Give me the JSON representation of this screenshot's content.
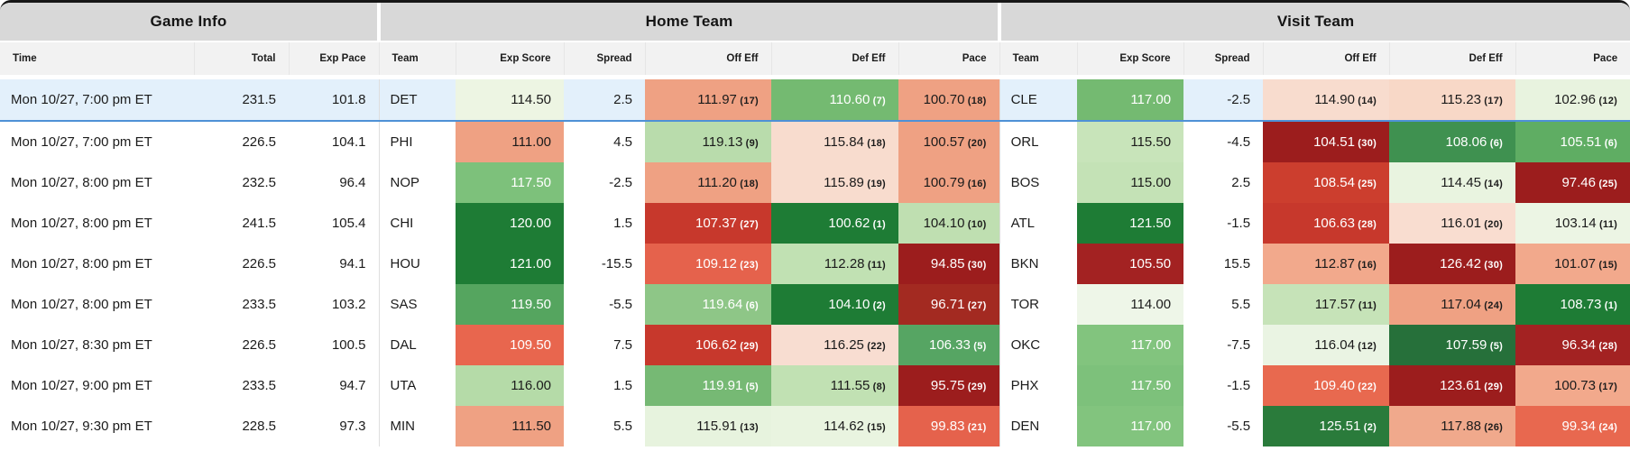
{
  "groups": [
    {
      "label": "Game Info"
    },
    {
      "label": "Home Team"
    },
    {
      "label": "Visit Team"
    }
  ],
  "columns": {
    "game_info": [
      "Time",
      "Total",
      "Exp Pace"
    ],
    "team": [
      "Team",
      "Exp Score",
      "Spread",
      "Off Eff",
      "Def Eff",
      "Pace"
    ]
  },
  "selection": {
    "row_bg": "#e3f0fb",
    "border": "#4e91d6"
  },
  "rows": [
    {
      "time": "Mon 10/27, 7:00 pm ET",
      "total": "231.5",
      "exp_pace": "101.8",
      "selected": true,
      "home": {
        "team": "DET",
        "exp_score": {
          "v": "114.50",
          "bg": "#edf5e3",
          "fg": "#1b1b1b"
        },
        "spread": "2.5",
        "off_eff": {
          "v": "111.97",
          "rank": "17",
          "bg": "#efa183",
          "fg": "#1b1b1b"
        },
        "def_eff": {
          "v": "110.60",
          "rank": "7",
          "bg": "#74ba71",
          "fg": "#ffffff"
        },
        "pace": {
          "v": "100.70",
          "rank": "18",
          "bg": "#efa183",
          "fg": "#1b1b1b"
        }
      },
      "visit": {
        "team": "CLE",
        "exp_score": {
          "v": "117.00",
          "bg": "#74ba71",
          "fg": "#ffffff"
        },
        "spread": "-2.5",
        "off_eff": {
          "v": "114.90",
          "rank": "14",
          "bg": "#f8dcce",
          "fg": "#1b1b1b"
        },
        "def_eff": {
          "v": "115.23",
          "rank": "17",
          "bg": "#f8d8c7",
          "fg": "#1b1b1b"
        },
        "pace": {
          "v": "102.96",
          "rank": "12",
          "bg": "#e8f3df",
          "fg": "#1b1b1b"
        }
      }
    },
    {
      "time": "Mon 10/27, 7:00 pm ET",
      "total": "226.5",
      "exp_pace": "104.1",
      "selected": false,
      "home": {
        "team": "PHI",
        "exp_score": {
          "v": "111.00",
          "bg": "#efa183",
          "fg": "#1b1b1b"
        },
        "spread": "4.5",
        "off_eff": {
          "v": "119.13",
          "rank": "9",
          "bg": "#b9dcac",
          "fg": "#1b1b1b"
        },
        "def_eff": {
          "v": "115.84",
          "rank": "18",
          "bg": "#f8dcce",
          "fg": "#1b1b1b"
        },
        "pace": {
          "v": "100.57",
          "rank": "20",
          "bg": "#efa183",
          "fg": "#1b1b1b"
        }
      },
      "visit": {
        "team": "ORL",
        "exp_score": {
          "v": "115.50",
          "bg": "#c8e4ba",
          "fg": "#1b1b1b"
        },
        "spread": "-4.5",
        "off_eff": {
          "v": "104.51",
          "rank": "30",
          "bg": "#9c1d1d",
          "fg": "#ffffff"
        },
        "def_eff": {
          "v": "108.06",
          "rank": "6",
          "bg": "#3f9150",
          "fg": "#ffffff"
        },
        "pace": {
          "v": "105.51",
          "rank": "6",
          "bg": "#5fad63",
          "fg": "#ffffff"
        }
      }
    },
    {
      "time": "Mon 10/27, 8:00 pm ET",
      "total": "232.5",
      "exp_pace": "96.4",
      "selected": false,
      "home": {
        "team": "NOP",
        "exp_score": {
          "v": "117.50",
          "bg": "#7dc17b",
          "fg": "#ffffff"
        },
        "spread": "-2.5",
        "off_eff": {
          "v": "111.20",
          "rank": "18",
          "bg": "#efa183",
          "fg": "#1b1b1b"
        },
        "def_eff": {
          "v": "115.89",
          "rank": "19",
          "bg": "#f8dcce",
          "fg": "#1b1b1b"
        },
        "pace": {
          "v": "100.79",
          "rank": "16",
          "bg": "#efa183",
          "fg": "#1b1b1b"
        }
      },
      "visit": {
        "team": "BOS",
        "exp_score": {
          "v": "115.00",
          "bg": "#c4e2b6",
          "fg": "#1b1b1b"
        },
        "spread": "2.5",
        "off_eff": {
          "v": "108.54",
          "rank": "25",
          "bg": "#cc3e2e",
          "fg": "#ffffff"
        },
        "def_eff": {
          "v": "114.45",
          "rank": "14",
          "bg": "#e9f4e0",
          "fg": "#1b1b1b"
        },
        "pace": {
          "v": "97.46",
          "rank": "25",
          "bg": "#9c1d1d",
          "fg": "#ffffff"
        }
      }
    },
    {
      "time": "Mon 10/27, 8:00 pm ET",
      "total": "241.5",
      "exp_pace": "105.4",
      "selected": false,
      "home": {
        "team": "CHI",
        "exp_score": {
          "v": "120.00",
          "bg": "#1e7c35",
          "fg": "#ffffff"
        },
        "spread": "1.5",
        "off_eff": {
          "v": "107.37",
          "rank": "27",
          "bg": "#c7382c",
          "fg": "#ffffff"
        },
        "def_eff": {
          "v": "100.62",
          "rank": "1",
          "bg": "#1e7c35",
          "fg": "#ffffff"
        },
        "pace": {
          "v": "104.10",
          "rank": "10",
          "bg": "#bfdfb1",
          "fg": "#1b1b1b"
        }
      },
      "visit": {
        "team": "ATL",
        "exp_score": {
          "v": "121.50",
          "bg": "#1e7c35",
          "fg": "#ffffff"
        },
        "spread": "-1.5",
        "off_eff": {
          "v": "106.63",
          "rank": "28",
          "bg": "#c7382c",
          "fg": "#ffffff"
        },
        "def_eff": {
          "v": "116.01",
          "rank": "20",
          "bg": "#f9ddd0",
          "fg": "#1b1b1b"
        },
        "pace": {
          "v": "103.14",
          "rank": "11",
          "bg": "#ecf5e4",
          "fg": "#1b1b1b"
        }
      }
    },
    {
      "time": "Mon 10/27, 8:00 pm ET",
      "total": "226.5",
      "exp_pace": "94.1",
      "selected": false,
      "home": {
        "team": "HOU",
        "exp_score": {
          "v": "121.00",
          "bg": "#1e7c35",
          "fg": "#ffffff"
        },
        "spread": "-15.5",
        "off_eff": {
          "v": "109.12",
          "rank": "23",
          "bg": "#e5624c",
          "fg": "#ffffff"
        },
        "def_eff": {
          "v": "112.28",
          "rank": "11",
          "bg": "#c1e1b3",
          "fg": "#1b1b1b"
        },
        "pace": {
          "v": "94.85",
          "rank": "30",
          "bg": "#9c1d1d",
          "fg": "#ffffff"
        }
      },
      "visit": {
        "team": "BKN",
        "exp_score": {
          "v": "105.50",
          "bg": "#a32222",
          "fg": "#ffffff"
        },
        "spread": "15.5",
        "off_eff": {
          "v": "112.87",
          "rank": "16",
          "bg": "#f2a98c",
          "fg": "#1b1b1b"
        },
        "def_eff": {
          "v": "126.42",
          "rank": "30",
          "bg": "#9c1d1d",
          "fg": "#ffffff"
        },
        "pace": {
          "v": "101.07",
          "rank": "15",
          "bg": "#f2a98c",
          "fg": "#1b1b1b"
        }
      }
    },
    {
      "time": "Mon 10/27, 8:00 pm ET",
      "total": "233.5",
      "exp_pace": "103.2",
      "selected": false,
      "home": {
        "team": "SAS",
        "exp_score": {
          "v": "119.50",
          "bg": "#55a55f",
          "fg": "#ffffff"
        },
        "spread": "-5.5",
        "off_eff": {
          "v": "119.64",
          "rank": "6",
          "bg": "#8ec687",
          "fg": "#ffffff"
        },
        "def_eff": {
          "v": "104.10",
          "rank": "2",
          "bg": "#1e7c35",
          "fg": "#ffffff"
        },
        "pace": {
          "v": "96.71",
          "rank": "27",
          "bg": "#a32a21",
          "fg": "#ffffff"
        }
      },
      "visit": {
        "team": "TOR",
        "exp_score": {
          "v": "114.00",
          "bg": "#eef6e8",
          "fg": "#1b1b1b"
        },
        "spread": "5.5",
        "off_eff": {
          "v": "117.57",
          "rank": "11",
          "bg": "#c6e3b8",
          "fg": "#1b1b1b"
        },
        "def_eff": {
          "v": "117.04",
          "rank": "24",
          "bg": "#efa183",
          "fg": "#1b1b1b"
        },
        "pace": {
          "v": "108.73",
          "rank": "1",
          "bg": "#1e7c35",
          "fg": "#ffffff"
        }
      }
    },
    {
      "time": "Mon 10/27, 8:30 pm ET",
      "total": "226.5",
      "exp_pace": "100.5",
      "selected": false,
      "home": {
        "team": "DAL",
        "exp_score": {
          "v": "109.50",
          "bg": "#e8664e",
          "fg": "#ffffff"
        },
        "spread": "7.5",
        "off_eff": {
          "v": "106.62",
          "rank": "29",
          "bg": "#c7382c",
          "fg": "#ffffff"
        },
        "def_eff": {
          "v": "116.25",
          "rank": "22",
          "bg": "#f8ddd1",
          "fg": "#1b1b1b"
        },
        "pace": {
          "v": "106.33",
          "rank": "5",
          "bg": "#56a563",
          "fg": "#ffffff"
        }
      },
      "visit": {
        "team": "OKC",
        "exp_score": {
          "v": "117.00",
          "bg": "#82c47e",
          "fg": "#ffffff"
        },
        "spread": "-7.5",
        "off_eff": {
          "v": "116.04",
          "rank": "12",
          "bg": "#eaf4e3",
          "fg": "#1b1b1b"
        },
        "def_eff": {
          "v": "107.59",
          "rank": "5",
          "bg": "#26703a",
          "fg": "#ffffff"
        },
        "pace": {
          "v": "96.34",
          "rank": "28",
          "bg": "#a32222",
          "fg": "#ffffff"
        }
      }
    },
    {
      "time": "Mon 10/27, 9:00 pm ET",
      "total": "233.5",
      "exp_pace": "94.7",
      "selected": false,
      "home": {
        "team": "UTA",
        "exp_score": {
          "v": "116.00",
          "bg": "#b5dba8",
          "fg": "#1b1b1b"
        },
        "spread": "1.5",
        "off_eff": {
          "v": "119.91",
          "rank": "5",
          "bg": "#76b974",
          "fg": "#ffffff"
        },
        "def_eff": {
          "v": "111.55",
          "rank": "8",
          "bg": "#c1e1b3",
          "fg": "#1b1b1b"
        },
        "pace": {
          "v": "95.75",
          "rank": "29",
          "bg": "#9c1d1d",
          "fg": "#ffffff"
        }
      },
      "visit": {
        "team": "PHX",
        "exp_score": {
          "v": "117.50",
          "bg": "#7dc17b",
          "fg": "#ffffff"
        },
        "spread": "-1.5",
        "off_eff": {
          "v": "109.40",
          "rank": "22",
          "bg": "#e8694f",
          "fg": "#ffffff"
        },
        "def_eff": {
          "v": "123.61",
          "rank": "29",
          "bg": "#9c1d1d",
          "fg": "#ffffff"
        },
        "pace": {
          "v": "100.73",
          "rank": "17",
          "bg": "#f2a98c",
          "fg": "#1b1b1b"
        }
      }
    },
    {
      "time": "Mon 10/27, 9:30 pm ET",
      "total": "228.5",
      "exp_pace": "97.3",
      "selected": false,
      "home": {
        "team": "MIN",
        "exp_score": {
          "v": "111.50",
          "bg": "#efa183",
          "fg": "#1b1b1b"
        },
        "spread": "5.5",
        "off_eff": {
          "v": "115.91",
          "rank": "13",
          "bg": "#e7f3de",
          "fg": "#1b1b1b"
        },
        "def_eff": {
          "v": "114.62",
          "rank": "15",
          "bg": "#e9f4e0",
          "fg": "#1b1b1b"
        },
        "pace": {
          "v": "99.83",
          "rank": "21",
          "bg": "#e5624c",
          "fg": "#ffffff"
        }
      },
      "visit": {
        "team": "DEN",
        "exp_score": {
          "v": "117.00",
          "bg": "#82c47e",
          "fg": "#ffffff"
        },
        "spread": "-5.5",
        "off_eff": {
          "v": "125.51",
          "rank": "2",
          "bg": "#2a7b3b",
          "fg": "#ffffff"
        },
        "def_eff": {
          "v": "117.88",
          "rank": "26",
          "bg": "#f0a98c",
          "fg": "#1b1b1b"
        },
        "pace": {
          "v": "99.34",
          "rank": "24",
          "bg": "#e8684f",
          "fg": "#ffffff"
        }
      }
    }
  ]
}
